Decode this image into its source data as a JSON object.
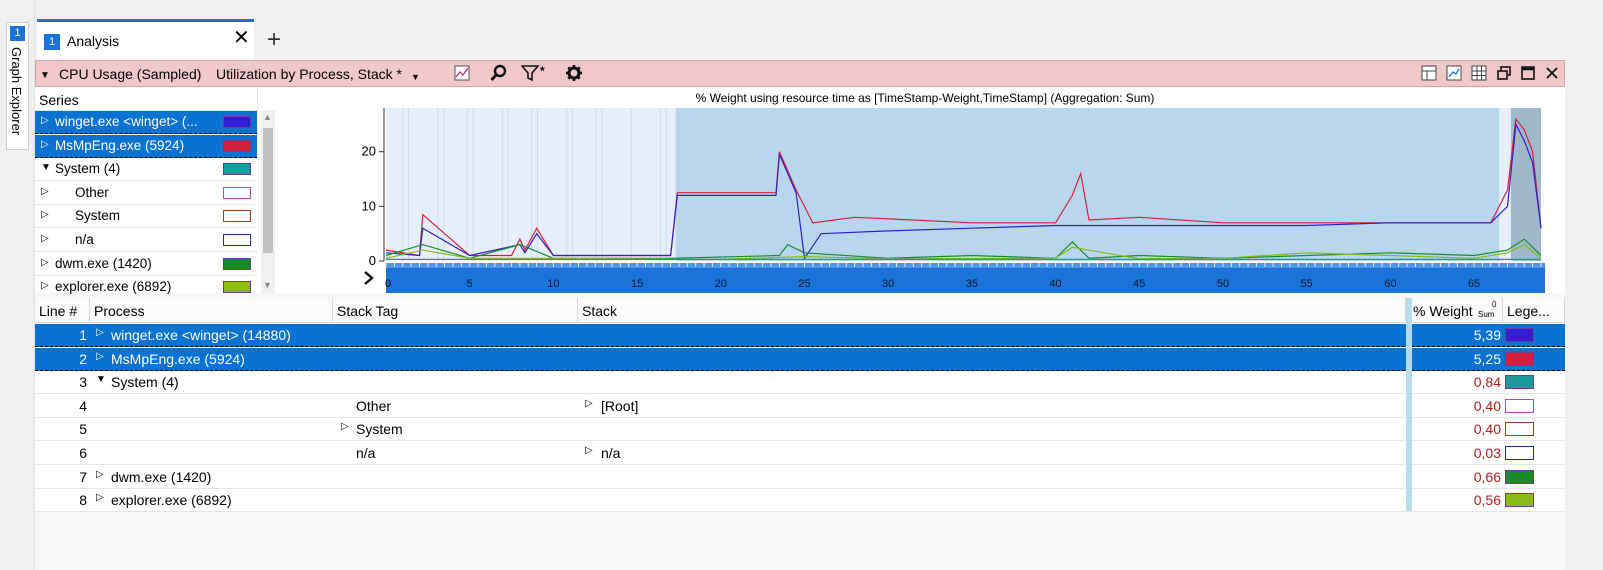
{
  "side": {
    "number": "1",
    "label": "Graph Explorer"
  },
  "tab": {
    "number": "1",
    "title": "Analysis",
    "close": "✕",
    "add": "+"
  },
  "panel": {
    "graph_name": "CPU Usage (Sampled)",
    "preset": "Utilization by Process, Stack *"
  },
  "series": {
    "header": "Series",
    "items": [
      {
        "label": "winget.exe <winget> (...",
        "color": "#2f1fd0",
        "level": 0,
        "expander": "▷",
        "selected": true
      },
      {
        "label": "MsMpEng.exe (5924)",
        "color": "#d4213b",
        "level": 0,
        "expander": "▷",
        "selected": true
      },
      {
        "label": "System (4)",
        "color": "#1a9a9a",
        "level": 0,
        "expander": "▼",
        "selected": false
      },
      {
        "label": "Other",
        "color": "#ffffff",
        "border": "#c040c0",
        "level": 1,
        "expander": "▷",
        "selected": false
      },
      {
        "label": "System",
        "color": "#ffffff",
        "border": "#a04020",
        "level": 1,
        "expander": "▷",
        "selected": false
      },
      {
        "label": "n/a",
        "color": "#ffffff",
        "border": "#20309a",
        "level": 1,
        "expander": "▷",
        "selected": false
      },
      {
        "label": "dwm.exe (1420)",
        "color": "#1a8a2a",
        "level": 0,
        "expander": "▷",
        "selected": false
      },
      {
        "label": "explorer.exe (6892)",
        "color": "#8aba1a",
        "level": 0,
        "expander": "▷",
        "selected": false
      }
    ]
  },
  "chart_data": {
    "type": "line",
    "title": "% Weight using resource time as [TimeStamp-Weight,TimeStamp] (Aggregation: Sum)",
    "xlabel": "",
    "ylabel": "",
    "xlim": [
      0,
      69
    ],
    "ylim": [
      0,
      28
    ],
    "x_ticks": [
      5,
      10,
      15,
      20,
      25,
      30,
      35,
      40,
      45,
      50,
      55,
      60,
      65
    ],
    "x_start_label": "0",
    "y_ticks": [
      0,
      10,
      20
    ],
    "series": [
      {
        "color": "#d4213b",
        "x": [
          0,
          2,
          2.2,
          5,
          7.5,
          8,
          8.3,
          9,
          10,
          17,
          17.4,
          23.3,
          23.5,
          24.5,
          25.5,
          28,
          35,
          40,
          41,
          41.5,
          42,
          45,
          50,
          55,
          60,
          66,
          67,
          67.5,
          68,
          68.5,
          69
        ],
        "y": [
          2,
          1,
          8.5,
          1,
          1,
          4,
          2,
          6,
          1,
          1,
          12.5,
          12.5,
          20,
          13,
          7,
          8,
          7,
          7,
          12,
          16,
          7.5,
          8,
          7,
          7,
          7,
          7,
          13,
          26,
          24,
          20,
          6
        ]
      },
      {
        "color": "#2f1fd0",
        "x": [
          0,
          2,
          2.2,
          5,
          8,
          8.3,
          9,
          10,
          17,
          17.4,
          23.3,
          23.5,
          24.5,
          25,
          26,
          30,
          35,
          40,
          45,
          50,
          55,
          60,
          66,
          67,
          67.5,
          68,
          68.5,
          69
        ],
        "y": [
          1.5,
          1,
          6,
          1,
          3,
          1.5,
          5,
          1,
          1,
          12,
          12,
          19.5,
          12.5,
          0.5,
          5,
          5.5,
          6,
          6.5,
          6.5,
          6.5,
          6.5,
          7,
          7,
          10,
          25,
          22,
          18,
          6
        ]
      },
      {
        "color": "#1a8a2a",
        "x": [
          0,
          2.2,
          5,
          8,
          10,
          17,
          23.5,
          24,
          25,
          30,
          35,
          40,
          41,
          42,
          45,
          50,
          55,
          60,
          65,
          67,
          68,
          69
        ],
        "y": [
          1,
          3,
          0.5,
          3,
          0.5,
          0.5,
          1,
          3,
          1.5,
          0.5,
          1,
          0.5,
          3.5,
          0.5,
          1,
          0.5,
          1,
          1.5,
          1,
          2,
          4,
          1
        ]
      },
      {
        "color": "#8aba1a",
        "x": [
          0,
          2.2,
          5,
          10,
          20,
          25,
          30,
          40,
          41,
          45,
          50,
          55,
          60,
          65,
          67,
          68,
          69
        ],
        "y": [
          0.5,
          2,
          0.5,
          0.5,
          0.3,
          0.8,
          0.4,
          0.5,
          2.5,
          0.4,
          0.5,
          1.5,
          1,
          0.5,
          1.5,
          3,
          0.5
        ]
      },
      {
        "color": "#1a9a9a",
        "x": [
          0,
          10,
          20,
          30,
          40,
          50,
          60,
          69
        ],
        "y": [
          0.3,
          0.3,
          0.3,
          0.3,
          0.3,
          0.3,
          0.3,
          0.3
        ]
      }
    ]
  },
  "table": {
    "columns": [
      "Line #",
      "Process",
      "Stack Tag",
      "Stack",
      "% Weight",
      "Lege..."
    ],
    "weight_sub": "Sum",
    "weight_sort_mark": "0",
    "rows": [
      {
        "line": "1",
        "process": "winget.exe <winget> (14880)",
        "process_expander": "▷",
        "stack_tag": "",
        "stack": "",
        "weight": "5,39",
        "color": "#2f1fd0",
        "selected": true
      },
      {
        "line": "2",
        "process": "MsMpEng.exe (5924)",
        "process_expander": "▷",
        "stack_tag": "",
        "stack": "",
        "weight": "5,25",
        "color": "#d4213b",
        "selected": true
      },
      {
        "line": "3",
        "process": "System (4)",
        "process_expander": "▼",
        "stack_tag": "",
        "stack": "",
        "weight": "0,84",
        "color": "#1a9a9a",
        "selected": false
      },
      {
        "line": "4",
        "process": "",
        "stack_tag": "Other",
        "stack_expander": "▷",
        "stack": "[Root]",
        "weight": "0,40",
        "color": "#ffffff",
        "border": "#c040c0",
        "selected": false
      },
      {
        "line": "5",
        "process": "",
        "stack_tag": "System",
        "tag_expander": "▷",
        "stack": "",
        "weight": "0,40",
        "color": "#ffffff",
        "border": "#a04020",
        "selected": false
      },
      {
        "line": "6",
        "process": "",
        "stack_tag": "n/a",
        "stack_expander": "▷",
        "stack": "n/a",
        "weight": "0,03",
        "color": "#ffffff",
        "border": "#20309a",
        "selected": false
      },
      {
        "line": "7",
        "process": "dwm.exe (1420)",
        "process_expander": "▷",
        "stack_tag": "",
        "stack": "",
        "weight": "0,66",
        "color": "#1a8a2a",
        "selected": false
      },
      {
        "line": "8",
        "process": "explorer.exe (6892)",
        "process_expander": "▷",
        "stack_tag": "",
        "stack": "",
        "weight": "0,56",
        "color": "#8aba1a",
        "selected": false
      }
    ]
  }
}
